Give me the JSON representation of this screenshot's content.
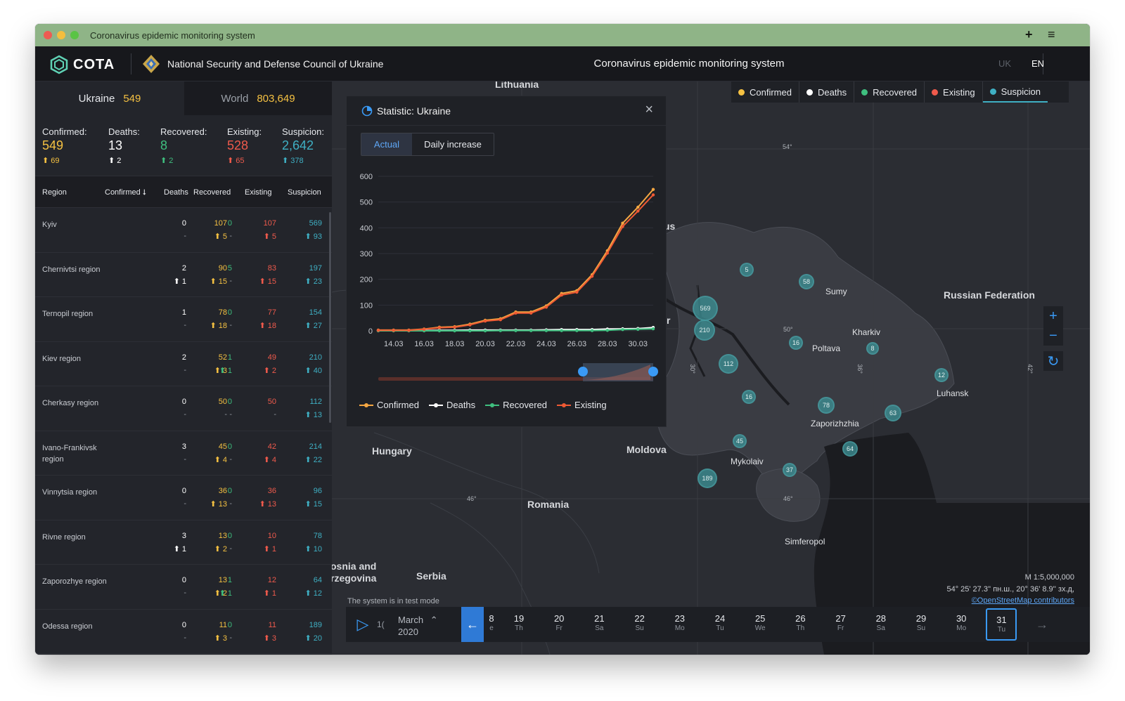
{
  "window": {
    "title": "Coronavirus epidemic monitoring system"
  },
  "header": {
    "logo_text": "COTA",
    "org_name": "National Security and Defense Council of Ukraine",
    "app_title": "Coronavirus epidemic monitoring system",
    "lang_uk": "UK",
    "lang_en": "EN"
  },
  "tabs": {
    "ukraine_label": "Ukraine",
    "ukraine_value": "549",
    "world_label": "World",
    "world_value": "803,649"
  },
  "summary": [
    {
      "label": "Confirmed:",
      "value": "549",
      "inc": "69",
      "color": "#f5c142"
    },
    {
      "label": "Deaths:",
      "value": "13",
      "inc": "2",
      "color": "#ffffff"
    },
    {
      "label": "Recovered:",
      "value": "8",
      "inc": "2",
      "color": "#3fbf7f"
    },
    {
      "label": "Existing:",
      "value": "528",
      "inc": "65",
      "color": "#ef5a4c"
    },
    {
      "label": "Suspicion:",
      "value": "2,642",
      "inc": "378",
      "color": "#3fb0c4"
    }
  ],
  "table": {
    "headers": {
      "region": "Region",
      "confirmed": "Confirmed",
      "deaths": "Deaths",
      "recovered": "Recovered",
      "existing": "Existing",
      "suspicion": "Suspicion"
    },
    "rows": [
      {
        "region": "Kyiv",
        "c": "107",
        "ci": "5",
        "d": "0",
        "di": "-",
        "r": "0",
        "ri": "-",
        "e": "107",
        "ei": "5",
        "s": "569",
        "si": "93"
      },
      {
        "region": "Chernivtsi region",
        "c": "90",
        "ci": "15",
        "d": "2",
        "di": "1",
        "r": "5",
        "ri": "-",
        "e": "83",
        "ei": "15",
        "s": "197",
        "si": "23"
      },
      {
        "region": "Ternopil region",
        "c": "78",
        "ci": "18",
        "d": "1",
        "di": "-",
        "r": "0",
        "ri": "-",
        "e": "77",
        "ei": "18",
        "s": "154",
        "si": "27"
      },
      {
        "region": "Kiev region",
        "c": "52",
        "ci": "3",
        "d": "2",
        "di": "-",
        "r": "1",
        "ri": "1",
        "e": "49",
        "ei": "2",
        "s": "210",
        "si": "40"
      },
      {
        "region": "Cherkasy region",
        "c": "50",
        "ci": "-",
        "d": "0",
        "di": "-",
        "r": "0",
        "ri": "-",
        "e": "50",
        "ei": "-",
        "s": "112",
        "si": "13"
      },
      {
        "region": "Ivano-Frankivsk region",
        "c": "45",
        "ci": "4",
        "d": "3",
        "di": "-",
        "r": "0",
        "ri": "-",
        "e": "42",
        "ei": "4",
        "s": "214",
        "si": "22"
      },
      {
        "region": "Vinnytsia region",
        "c": "36",
        "ci": "13",
        "d": "0",
        "di": "-",
        "r": "0",
        "ri": "-",
        "e": "36",
        "ei": "13",
        "s": "96",
        "si": "15"
      },
      {
        "region": "Rivne region",
        "c": "13",
        "ci": "2",
        "d": "3",
        "di": "1",
        "r": "0",
        "ri": "-",
        "e": "10",
        "ei": "1",
        "s": "78",
        "si": "10"
      },
      {
        "region": "Zaporozhye region",
        "c": "13",
        "ci": "2",
        "d": "0",
        "di": "-",
        "r": "1",
        "ri": "1",
        "e": "12",
        "ei": "1",
        "s": "64",
        "si": "12"
      },
      {
        "region": "Odessa region",
        "c": "11",
        "ci": "3",
        "d": "0",
        "di": "-",
        "r": "0",
        "ri": "-",
        "e": "11",
        "ei": "3",
        "s": "189",
        "si": "20"
      }
    ]
  },
  "map": {
    "legend": [
      {
        "label": "Confirmed",
        "color": "#f5c142"
      },
      {
        "label": "Deaths",
        "color": "#ffffff"
      },
      {
        "label": "Recovered",
        "color": "#3fbf7f"
      },
      {
        "label": "Existing",
        "color": "#ef5a4c"
      },
      {
        "label": "Suspicion",
        "color": "#3fb0c4"
      }
    ],
    "labels": {
      "lithuania": "Lithuania",
      "belarus_fragment": "us",
      "russia": "Russian Federation",
      "hungary": "Hungary",
      "moldova": "Moldova",
      "romania": "Romania",
      "serbia": "Serbia",
      "bosnia": "osnia and\nrzegovina",
      "sumy": "Sumy",
      "kharkiv": "Kharkiv",
      "poltava": "Poltava",
      "luhansk": "Luhansk",
      "zaporizhzhia": "Zaporizhzhia",
      "mykolaiv": "Mykolaiv",
      "simferopol": "Simferopol",
      "r_fragment": "r"
    },
    "coords": {
      "c54": "54°",
      "c50": "50°",
      "c46a": "46°",
      "c46b": "46°",
      "c30": "30°",
      "c36": "36°",
      "c42": "42°"
    },
    "clusters": [
      "5",
      "58",
      "569",
      "210",
      "16",
      "8",
      "112",
      "12",
      "16",
      "78",
      "63",
      "45",
      "64",
      "37",
      "189"
    ],
    "scale": "M 1:5,000,000",
    "cursor_coords": "54° 25' 27.3'' пн.ш., 20° 36' 8.9'' зх.д,",
    "osm": "©OpenStreetMap contributors",
    "test_mode": "The system is in test mode"
  },
  "timeline": {
    "partial_left": "1(",
    "month": "March",
    "year": "2020",
    "days": [
      {
        "n": "8",
        "d": "e"
      },
      {
        "n": "19",
        "d": "Th"
      },
      {
        "n": "20",
        "d": "Fr"
      },
      {
        "n": "21",
        "d": "Sa"
      },
      {
        "n": "22",
        "d": "Su"
      },
      {
        "n": "23",
        "d": "Mo"
      },
      {
        "n": "24",
        "d": "Tu"
      },
      {
        "n": "25",
        "d": "We"
      },
      {
        "n": "26",
        "d": "Th"
      },
      {
        "n": "27",
        "d": "Fr"
      },
      {
        "n": "28",
        "d": "Sa"
      },
      {
        "n": "29",
        "d": "Su"
      },
      {
        "n": "30",
        "d": "Mo"
      },
      {
        "n": "31",
        "d": "Tu"
      }
    ]
  },
  "statistic": {
    "title": "Statistic: Ukraine",
    "tab_actual": "Actual",
    "tab_daily": "Daily increase"
  },
  "chart_data": {
    "type": "line",
    "title": "Statistic: Ukraine",
    "x": [
      "13.03",
      "14.03",
      "15.03",
      "16.03",
      "17.03",
      "18.03",
      "19.03",
      "20.03",
      "21.03",
      "22.03",
      "23.03",
      "24.03",
      "25.03",
      "26.03",
      "27.03",
      "28.03",
      "29.03",
      "30.03",
      "31.03"
    ],
    "xticks": [
      "14.03",
      "16.03",
      "18.03",
      "20.03",
      "22.03",
      "24.03",
      "26.03",
      "28.03",
      "30.03"
    ],
    "yticks": [
      "0",
      "100",
      "200",
      "300",
      "400",
      "500",
      "600"
    ],
    "ylim": [
      0,
      600
    ],
    "series": [
      {
        "name": "Confirmed",
        "color": "#f5a742",
        "values": [
          3,
          3,
          3,
          7,
          14,
          16,
          26,
          41,
          47,
          73,
          73,
          97,
          145,
          156,
          218,
          311,
          418,
          480,
          549
        ]
      },
      {
        "name": "Deaths",
        "color": "#ffffff",
        "values": [
          1,
          1,
          1,
          1,
          2,
          2,
          3,
          3,
          3,
          3,
          3,
          4,
          5,
          5,
          5,
          7,
          8,
          9,
          13
        ]
      },
      {
        "name": "Recovered",
        "color": "#3fbf7f",
        "values": [
          0,
          0,
          0,
          0,
          0,
          0,
          0,
          0,
          1,
          1,
          1,
          1,
          1,
          1,
          1,
          2,
          5,
          6,
          8
        ]
      },
      {
        "name": "Existing",
        "color": "#ef5a34",
        "values": [
          2,
          2,
          2,
          6,
          12,
          14,
          23,
          38,
          43,
          69,
          69,
          92,
          139,
          150,
          212,
          302,
          405,
          465,
          528
        ]
      }
    ]
  }
}
